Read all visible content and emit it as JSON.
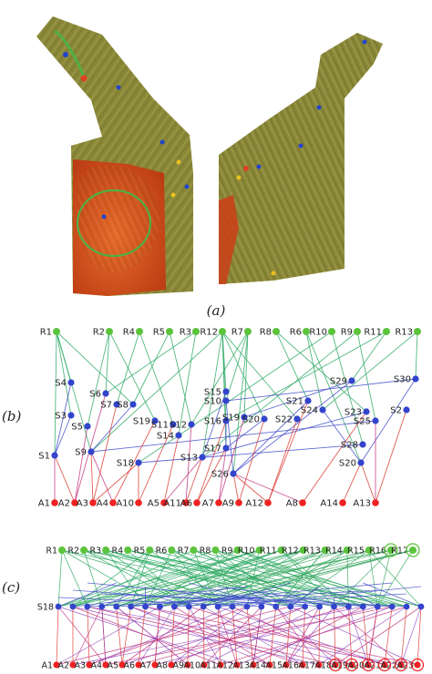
{
  "panels": {
    "a": {
      "caption": "(a)"
    },
    "b": {
      "caption": "(b)",
      "roots": [
        "R1",
        "R2",
        "R4",
        "R5",
        "R3",
        "R12",
        "R7",
        "R8",
        "R6",
        "R10",
        "R9",
        "R11",
        "R13"
      ],
      "saddles": [
        "S4",
        "S6",
        "S7",
        "S3",
        "S5",
        "S8",
        "S19",
        "S11",
        "S12",
        "S14",
        "S15",
        "S10",
        "S16",
        "S19",
        "S20",
        "S22",
        "S21",
        "S24",
        "S23",
        "S25",
        "S2",
        "S1",
        "S9",
        "S18",
        "S13",
        "S17",
        "S26",
        "S20",
        "S28",
        "S29",
        "S30"
      ],
      "attractors": [
        "A1",
        "A2",
        "A3",
        "A4",
        "A10",
        "A5",
        "A11",
        "A6",
        "A7",
        "A9",
        "A12",
        "A8",
        "A14",
        "A13"
      ]
    },
    "c": {
      "caption": "(c)",
      "roots": [
        "R1",
        "R2",
        "R3",
        "R4",
        "R5",
        "R6",
        "R7",
        "R8",
        "R9",
        "R10",
        "R11",
        "R12",
        "R13",
        "R14",
        "R15",
        "R16",
        "R17"
      ],
      "attractors": [
        "A1",
        "A2",
        "A3",
        "A4",
        "A5",
        "A6",
        "A7",
        "A8",
        "A9",
        "A10",
        "A11",
        "A12",
        "A13",
        "A14",
        "A15",
        "A16",
        "A17",
        "A18",
        "A19",
        "A20",
        "A21",
        "A22",
        "A23"
      ],
      "saddle_row_label": "S18"
    }
  },
  "colors": {
    "root": "#5cc43c",
    "saddle": "#3344cc",
    "attractor": "#ee2222",
    "edge_rs": "#28a860",
    "edge_ss": "#3a46c8",
    "edge_sa": "#c0307a",
    "surface": "#8c8a3a",
    "vortex": "#d04a1a"
  }
}
